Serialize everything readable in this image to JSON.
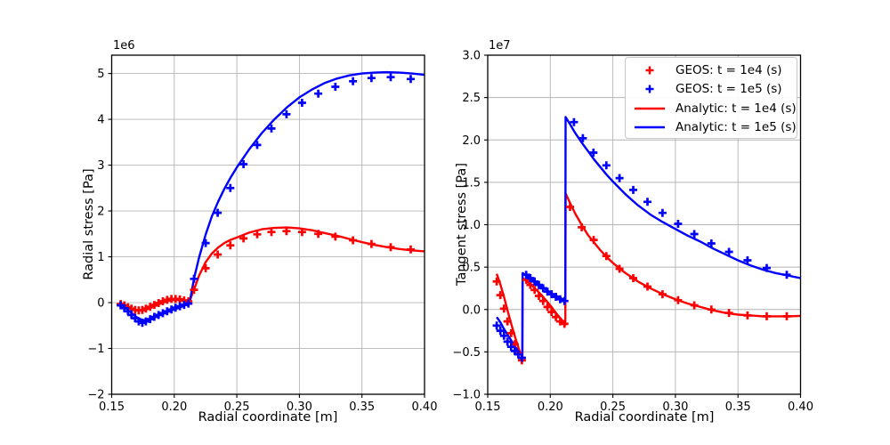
{
  "colors": {
    "red": "#ff0000",
    "blue": "#0000ff",
    "grid": "#b4b4b4",
    "axis": "#000000",
    "background": "#ffffff",
    "legend_border": "#c9c9c9"
  },
  "chart_data": [
    {
      "type": "line",
      "title": "",
      "xlabel": "Radial coordinate [m]",
      "ylabel": "Radial stress [Pa]",
      "offset_label": "1e6",
      "y_unit_scale": "1e6",
      "xlim": [
        0.15,
        0.4
      ],
      "ylim": [
        -2.0,
        5.4
      ],
      "grid": true,
      "legend_loc": "none",
      "xticks": {
        "values": [
          0.15,
          0.2,
          0.25,
          0.3,
          0.35,
          0.4
        ],
        "labels": [
          "0.15",
          "0.20",
          "0.25",
          "0.30",
          "0.35",
          "0.40"
        ]
      },
      "yticks": {
        "values": [
          -2,
          -1,
          0,
          1,
          2,
          3,
          4,
          5
        ],
        "labels": [
          "−2",
          "−1",
          "0",
          "1",
          "2",
          "3",
          "4",
          "5"
        ]
      },
      "series": [
        {
          "name": "Analytic: t = 1e4 (s)",
          "style": "line",
          "color": "red",
          "x": [
            0.1572,
            0.16,
            0.163,
            0.166,
            0.169,
            0.172,
            0.175,
            0.1778,
            0.181,
            0.185,
            0.189,
            0.193,
            0.197,
            0.201,
            0.205,
            0.209,
            0.2121,
            0.216,
            0.22,
            0.225,
            0.23,
            0.235,
            0.24,
            0.245,
            0.25,
            0.26,
            0.27,
            0.28,
            0.29,
            0.3,
            0.31,
            0.32,
            0.33,
            0.34,
            0.35,
            0.36,
            0.37,
            0.38,
            0.39,
            0.4
          ],
          "y": [
            -0.02,
            -0.05,
            -0.09,
            -0.13,
            -0.16,
            -0.17,
            -0.17,
            -0.15,
            -0.12,
            -0.07,
            -0.02,
            0.02,
            0.05,
            0.06,
            0.05,
            0.03,
            0.02,
            0.3,
            0.6,
            0.88,
            1.07,
            1.2,
            1.3,
            1.37,
            1.42,
            1.53,
            1.6,
            1.63,
            1.64,
            1.62,
            1.58,
            1.52,
            1.46,
            1.39,
            1.32,
            1.26,
            1.21,
            1.17,
            1.14,
            1.12
          ]
        },
        {
          "name": "Analytic: t = 1e5 (s)",
          "style": "line",
          "color": "blue",
          "x": [
            0.1572,
            0.16,
            0.163,
            0.166,
            0.169,
            0.172,
            0.175,
            0.1778,
            0.181,
            0.185,
            0.189,
            0.193,
            0.197,
            0.201,
            0.205,
            0.209,
            0.2121,
            0.216,
            0.22,
            0.225,
            0.23,
            0.235,
            0.24,
            0.245,
            0.25,
            0.26,
            0.27,
            0.28,
            0.29,
            0.3,
            0.31,
            0.32,
            0.33,
            0.34,
            0.35,
            0.36,
            0.37,
            0.38,
            0.39,
            0.4
          ],
          "y": [
            -0.04,
            -0.09,
            -0.16,
            -0.23,
            -0.3,
            -0.35,
            -0.38,
            -0.39,
            -0.35,
            -0.3,
            -0.26,
            -0.22,
            -0.18,
            -0.14,
            -0.1,
            -0.05,
            -0.02,
            0.55,
            1.0,
            1.48,
            1.88,
            2.2,
            2.48,
            2.73,
            2.95,
            3.35,
            3.7,
            4.0,
            4.26,
            4.48,
            4.65,
            4.79,
            4.89,
            4.96,
            5.0,
            5.02,
            5.03,
            5.02,
            5.0,
            4.97
          ]
        },
        {
          "name": "GEOS: t = 1e4 (s)",
          "style": "markers",
          "marker": "plus",
          "color": "red",
          "x": [
            0.1572,
            0.1601,
            0.163,
            0.1658,
            0.1687,
            0.1716,
            0.1745,
            0.1773,
            0.1807,
            0.1841,
            0.1875,
            0.1909,
            0.1943,
            0.1977,
            0.2011,
            0.2045,
            0.2079,
            0.2113,
            0.2158,
            0.2251,
            0.2347,
            0.2448,
            0.2553,
            0.2663,
            0.2777,
            0.2897,
            0.3021,
            0.3151,
            0.3287,
            0.3428,
            0.3576,
            0.373,
            0.389
          ],
          "y": [
            -0.03,
            -0.06,
            -0.1,
            -0.13,
            -0.16,
            -0.17,
            -0.16,
            -0.13,
            -0.09,
            -0.05,
            -0.01,
            0.03,
            0.06,
            0.08,
            0.08,
            0.07,
            0.05,
            0.03,
            0.28,
            0.75,
            1.05,
            1.25,
            1.4,
            1.49,
            1.54,
            1.56,
            1.54,
            1.5,
            1.44,
            1.36,
            1.28,
            1.21,
            1.16
          ]
        },
        {
          "name": "GEOS: t = 1e5 (s)",
          "style": "markers",
          "marker": "plus",
          "color": "blue",
          "x": [
            0.1572,
            0.1601,
            0.163,
            0.1658,
            0.1687,
            0.1716,
            0.1745,
            0.1773,
            0.1807,
            0.1841,
            0.1875,
            0.1909,
            0.1943,
            0.1977,
            0.2011,
            0.2045,
            0.2079,
            0.2113,
            0.2158,
            0.2251,
            0.2347,
            0.2448,
            0.2553,
            0.2663,
            0.2777,
            0.2897,
            0.3021,
            0.3151,
            0.3287,
            0.3428,
            0.3576,
            0.373,
            0.389
          ],
          "y": [
            -0.06,
            -0.12,
            -0.19,
            -0.27,
            -0.34,
            -0.41,
            -0.44,
            -0.41,
            -0.36,
            -0.31,
            -0.27,
            -0.23,
            -0.19,
            -0.15,
            -0.11,
            -0.08,
            -0.05,
            -0.02,
            0.52,
            1.3,
            1.96,
            2.5,
            3.02,
            3.44,
            3.8,
            4.11,
            4.36,
            4.56,
            4.71,
            4.83,
            4.9,
            4.92,
            4.88
          ]
        }
      ]
    },
    {
      "type": "line",
      "title": "",
      "xlabel": "Radial coordinate [m]",
      "ylabel": "Tangent stress [Pa]",
      "offset_label": "1e7",
      "y_unit_scale": "1e7",
      "xlim": [
        0.15,
        0.4
      ],
      "ylim": [
        -1.0,
        3.0
      ],
      "grid": true,
      "legend_loc": "upper right",
      "xticks": {
        "values": [
          0.15,
          0.2,
          0.25,
          0.3,
          0.35,
          0.4
        ],
        "labels": [
          "0.15",
          "0.20",
          "0.25",
          "0.30",
          "0.35",
          "0.40"
        ]
      },
      "yticks": {
        "values": [
          -1.0,
          -0.5,
          0.0,
          0.5,
          1.0,
          1.5,
          2.0,
          2.5,
          3.0
        ],
        "labels": [
          "−1.0",
          "−0.5",
          "0.0",
          "0.5",
          "1.0",
          "1.5",
          "2.0",
          "2.5",
          "3.0"
        ]
      },
      "legend": [
        {
          "label": "GEOS: t = 1e4 (s)",
          "color": "red",
          "handle": "marker"
        },
        {
          "label": "GEOS: t = 1e5 (s)",
          "color": "blue",
          "handle": "marker"
        },
        {
          "label": "Analytic: t = 1e4 (s)",
          "color": "red",
          "handle": "line"
        },
        {
          "label": "Analytic: t = 1e5 (s)",
          "color": "blue",
          "handle": "line"
        }
      ],
      "series": [
        {
          "name": "Analytic: t = 1e4 (s)",
          "style": "line",
          "color": "red",
          "x": [
            0.1572,
            0.16,
            0.163,
            0.166,
            0.169,
            0.172,
            0.175,
            0.1777,
            0.1779,
            0.181,
            0.185,
            0.189,
            0.193,
            0.197,
            0.201,
            0.205,
            0.209,
            0.212,
            0.2122,
            0.216,
            0.22,
            0.225,
            0.23,
            0.235,
            0.24,
            0.245,
            0.25,
            0.26,
            0.27,
            0.28,
            0.29,
            0.3,
            0.31,
            0.32,
            0.33,
            0.34,
            0.35,
            0.36,
            0.37,
            0.38,
            0.39,
            0.4
          ],
          "y": [
            0.42,
            0.3,
            0.15,
            -0.02,
            -0.18,
            -0.33,
            -0.47,
            -0.57,
            0.37,
            0.34,
            0.29,
            0.23,
            0.17,
            0.1,
            0.03,
            -0.05,
            -0.12,
            -0.18,
            1.37,
            1.25,
            1.13,
            1.0,
            0.88,
            0.79,
            0.7,
            0.62,
            0.55,
            0.43,
            0.33,
            0.25,
            0.18,
            0.12,
            0.07,
            0.03,
            -0.01,
            -0.04,
            -0.06,
            -0.07,
            -0.08,
            -0.08,
            -0.08,
            -0.075
          ]
        },
        {
          "name": "Analytic: t = 1e5 (s)",
          "style": "line",
          "color": "blue",
          "x": [
            0.1572,
            0.16,
            0.163,
            0.166,
            0.169,
            0.172,
            0.175,
            0.1777,
            0.1779,
            0.181,
            0.185,
            0.189,
            0.193,
            0.197,
            0.201,
            0.205,
            0.209,
            0.212,
            0.2122,
            0.216,
            0.22,
            0.225,
            0.23,
            0.235,
            0.24,
            0.245,
            0.25,
            0.26,
            0.27,
            0.28,
            0.29,
            0.3,
            0.31,
            0.32,
            0.33,
            0.34,
            0.35,
            0.36,
            0.37,
            0.38,
            0.39,
            0.4
          ],
          "y": [
            -0.09,
            -0.15,
            -0.23,
            -0.3,
            -0.37,
            -0.44,
            -0.5,
            -0.55,
            0.43,
            0.4,
            0.36,
            0.31,
            0.27,
            0.23,
            0.19,
            0.16,
            0.13,
            0.1,
            2.27,
            2.18,
            2.08,
            1.97,
            1.87,
            1.77,
            1.68,
            1.59,
            1.51,
            1.36,
            1.23,
            1.12,
            1.03,
            0.95,
            0.87,
            0.8,
            0.72,
            0.65,
            0.58,
            0.52,
            0.47,
            0.43,
            0.4,
            0.37
          ]
        },
        {
          "name": "GEOS: t = 1e4 (s)",
          "style": "markers",
          "marker": "plus",
          "color": "red",
          "x": [
            0.1572,
            0.1601,
            0.163,
            0.1658,
            0.1687,
            0.1716,
            0.1745,
            0.1773,
            0.1807,
            0.1841,
            0.1875,
            0.1909,
            0.1943,
            0.1977,
            0.2011,
            0.2045,
            0.2079,
            0.2113,
            0.2158,
            0.2251,
            0.2347,
            0.2448,
            0.2553,
            0.2663,
            0.2777,
            0.2897,
            0.3021,
            0.3151,
            0.3287,
            0.3428,
            0.3576,
            0.373,
            0.389
          ],
          "y": [
            0.33,
            0.17,
            0.01,
            -0.14,
            -0.28,
            -0.41,
            -0.52,
            -0.6,
            0.35,
            0.29,
            0.23,
            0.16,
            0.1,
            0.03,
            -0.03,
            -0.09,
            -0.14,
            -0.17,
            1.21,
            0.97,
            0.82,
            0.63,
            0.48,
            0.37,
            0.27,
            0.18,
            0.11,
            0.05,
            0.0,
            -0.04,
            -0.07,
            -0.08,
            -0.08
          ]
        },
        {
          "name": "GEOS: t = 1e5 (s)",
          "style": "markers",
          "marker": "plus",
          "color": "blue",
          "x": [
            0.1572,
            0.1601,
            0.163,
            0.1658,
            0.1687,
            0.1716,
            0.1745,
            0.1773,
            0.1807,
            0.1841,
            0.1875,
            0.1909,
            0.1943,
            0.1977,
            0.2011,
            0.2045,
            0.2079,
            0.2113,
            0.2189,
            0.226,
            0.2345,
            0.2448,
            0.2553,
            0.2663,
            0.2777,
            0.2897,
            0.3021,
            0.3151,
            0.3287,
            0.3428,
            0.3576,
            0.373,
            0.389
          ],
          "y": [
            -0.19,
            -0.25,
            -0.31,
            -0.38,
            -0.44,
            -0.49,
            -0.53,
            -0.57,
            0.41,
            0.37,
            0.33,
            0.29,
            0.25,
            0.21,
            0.18,
            0.15,
            0.12,
            0.1,
            2.21,
            2.02,
            1.85,
            1.7,
            1.55,
            1.41,
            1.27,
            1.14,
            1.01,
            0.89,
            0.78,
            0.68,
            0.58,
            0.49,
            0.41
          ]
        }
      ]
    }
  ]
}
